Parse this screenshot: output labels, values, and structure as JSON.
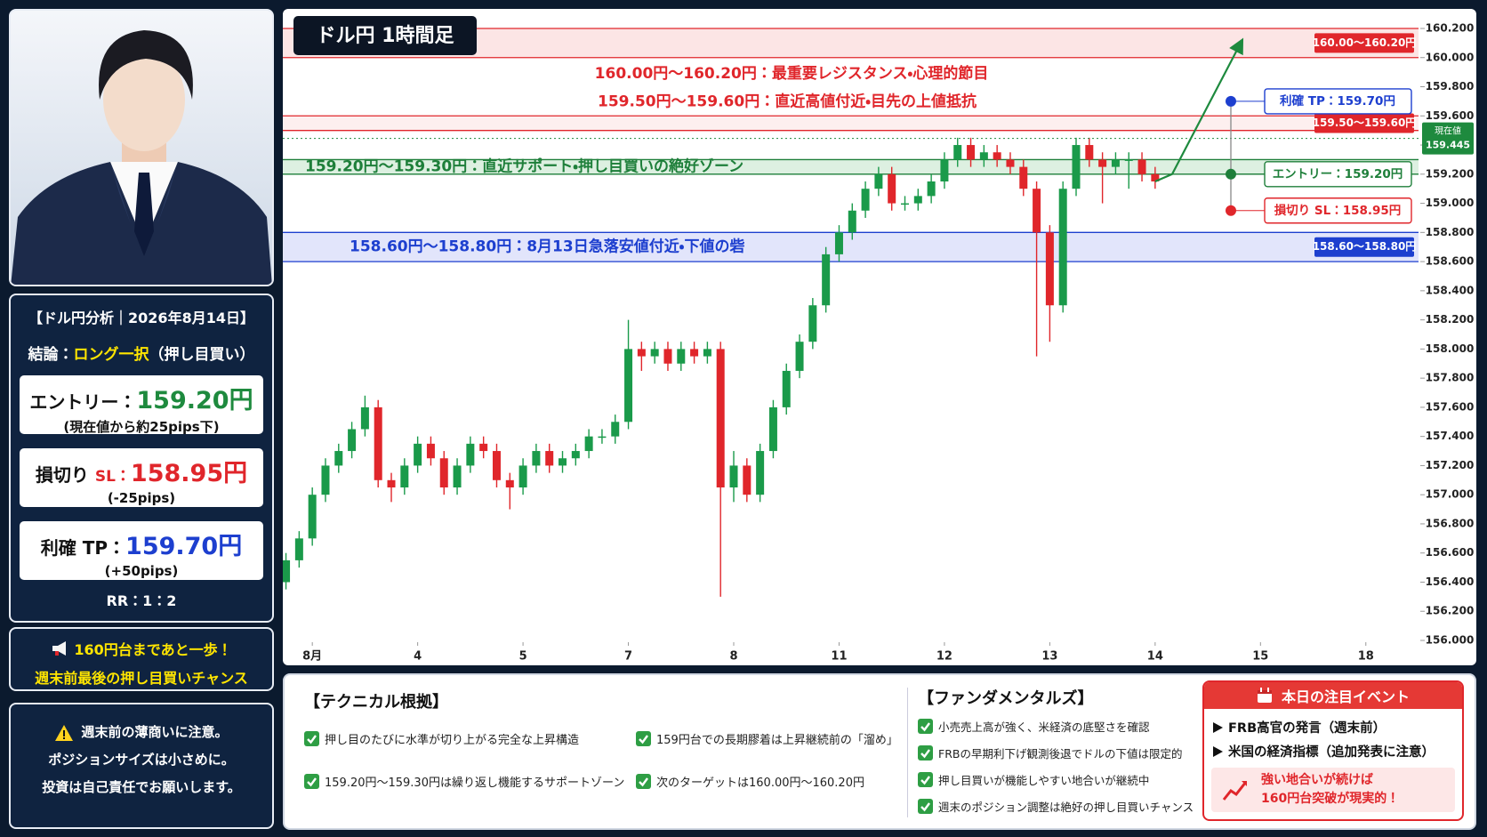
{
  "sidebar": {
    "title": "【ドル円分析｜2026年8月14日】",
    "conclusion": {
      "label": "結論：",
      "value": "ロング一択",
      "note": "（押し目買い）"
    },
    "entry": {
      "label": "エントリー：",
      "price": "159.20円",
      "note": "(現在値から約25pips下)"
    },
    "stop_loss": {
      "label": "損切り",
      "tag": "SL：",
      "price": "158.95円",
      "note": "(-25pips)"
    },
    "take_profit": {
      "label": "利確 TP：",
      "price": "159.70円",
      "note": "(+50pips)"
    },
    "rr": "RR：1：2",
    "banner": [
      "160円台まであと一歩！",
      "週末前最後の押し目買いチャンス"
    ],
    "notice": [
      "週末前の薄商いに注意。",
      "ポジションサイズは小さめに。",
      "投資は自己責任でお願いします。"
    ]
  },
  "chart_data": {
    "type": "candlestick",
    "title": "ドル円 1時間足",
    "up_color": "#1a9a4a",
    "down_color": "#e0262b",
    "x": [
      -0.25,
      -0.125,
      0,
      0.125,
      0.25,
      0.375,
      0.5,
      0.625,
      0.75,
      0.875,
      1,
      1.125,
      1.25,
      1.375,
      1.5,
      1.625,
      1.75,
      1.875,
      2,
      2.125,
      2.25,
      2.375,
      2.5,
      2.625,
      2.75,
      2.875,
      3,
      3.125,
      3.25,
      3.375,
      3.5,
      3.625,
      3.75,
      3.875,
      4,
      4.125,
      4.25,
      4.375,
      4.5,
      4.625,
      4.75,
      4.875,
      5,
      5.125,
      5.25,
      5.375,
      5.5,
      5.625,
      5.75,
      5.875,
      6,
      6.125,
      6.25,
      6.375,
      6.5,
      6.625,
      6.75,
      6.875,
      7,
      7.125,
      7.25,
      7.375,
      7.5,
      7.625,
      7.75,
      7.875,
      8
    ],
    "open": [
      156.4,
      156.55,
      156.7,
      157.0,
      157.2,
      157.3,
      157.45,
      157.6,
      157.1,
      157.05,
      157.2,
      157.35,
      157.25,
      157.05,
      157.2,
      157.35,
      157.3,
      157.1,
      157.05,
      157.2,
      157.3,
      157.2,
      157.25,
      157.3,
      157.4,
      157.4,
      157.5,
      158.0,
      157.95,
      158.0,
      157.9,
      158.0,
      157.95,
      158.0,
      157.05,
      157.2,
      157.0,
      157.3,
      157.6,
      157.85,
      158.05,
      158.3,
      158.65,
      158.8,
      158.95,
      159.1,
      159.2,
      159.0,
      159.0,
      159.05,
      159.15,
      159.3,
      159.4,
      159.3,
      159.35,
      159.3,
      159.25,
      159.1,
      158.8,
      158.3,
      159.1,
      159.4,
      159.3,
      159.25,
      159.3,
      159.3,
      159.2
    ],
    "high": [
      156.6,
      156.75,
      157.05,
      157.25,
      157.35,
      157.5,
      157.68,
      157.65,
      157.15,
      157.25,
      157.4,
      157.4,
      157.3,
      157.25,
      157.4,
      157.4,
      157.35,
      157.15,
      157.25,
      157.35,
      157.35,
      157.3,
      157.35,
      157.45,
      157.45,
      157.55,
      158.2,
      158.05,
      158.05,
      158.05,
      158.05,
      158.05,
      158.05,
      158.05,
      157.3,
      157.25,
      157.35,
      157.65,
      157.9,
      158.1,
      158.35,
      158.7,
      158.85,
      159.0,
      159.15,
      159.25,
      159.25,
      159.05,
      159.1,
      159.2,
      159.35,
      159.45,
      159.45,
      159.4,
      159.4,
      159.35,
      159.3,
      159.15,
      158.85,
      159.15,
      159.45,
      159.45,
      159.35,
      159.35,
      159.35,
      159.35,
      159.25
    ],
    "low": [
      156.35,
      156.5,
      156.65,
      156.95,
      157.15,
      157.25,
      157.4,
      157.05,
      156.95,
      157.0,
      157.15,
      157.2,
      157.0,
      157.0,
      157.15,
      157.25,
      157.05,
      156.9,
      157.0,
      157.15,
      157.15,
      157.15,
      157.2,
      157.25,
      157.35,
      157.35,
      157.45,
      157.85,
      157.9,
      157.85,
      157.85,
      157.9,
      157.9,
      156.3,
      156.95,
      156.95,
      156.95,
      157.25,
      157.55,
      157.8,
      158.0,
      158.25,
      158.6,
      158.75,
      158.9,
      159.05,
      158.95,
      158.95,
      158.95,
      159.0,
      159.1,
      159.25,
      159.25,
      159.25,
      159.25,
      159.2,
      159.05,
      157.95,
      158.05,
      158.25,
      159.05,
      159.25,
      159.0,
      159.2,
      159.1,
      159.15,
      159.1
    ],
    "close": [
      156.55,
      156.7,
      157.0,
      157.2,
      157.3,
      157.45,
      157.6,
      157.1,
      157.05,
      157.2,
      157.35,
      157.25,
      157.05,
      157.2,
      157.35,
      157.3,
      157.1,
      157.05,
      157.2,
      157.3,
      157.2,
      157.25,
      157.3,
      157.4,
      157.4,
      157.5,
      158.0,
      157.95,
      158.0,
      157.9,
      158.0,
      157.95,
      158.0,
      157.05,
      157.2,
      157.0,
      157.3,
      157.6,
      157.85,
      158.05,
      158.3,
      158.65,
      158.8,
      158.95,
      159.1,
      159.2,
      159.0,
      159.0,
      159.05,
      159.15,
      159.3,
      159.4,
      159.3,
      159.35,
      159.3,
      159.25,
      159.1,
      158.8,
      158.3,
      159.1,
      159.4,
      159.3,
      159.25,
      159.3,
      159.3,
      159.2,
      159.15
    ],
    "xlim": [
      -0.28,
      10.5
    ],
    "xticks": [
      {
        "value": 0,
        "label": "8月"
      },
      {
        "value": 1,
        "label": "4"
      },
      {
        "value": 2,
        "label": "5"
      },
      {
        "value": 3,
        "label": "7"
      },
      {
        "value": 4,
        "label": "8"
      },
      {
        "value": 5,
        "label": "11"
      },
      {
        "value": 6,
        "label": "12"
      },
      {
        "value": 7,
        "label": "13"
      },
      {
        "value": 8,
        "label": "14"
      },
      {
        "value": 9,
        "label": "15"
      },
      {
        "value": 10,
        "label": "18"
      }
    ],
    "ylim": [
      156.0,
      160.2
    ],
    "yticks": [
      {
        "value": 156.0,
        "label": "156.000"
      },
      {
        "value": 156.2,
        "label": "156.200"
      },
      {
        "value": 156.4,
        "label": "156.400"
      },
      {
        "value": 156.6,
        "label": "156.600"
      },
      {
        "value": 156.8,
        "label": "156.800"
      },
      {
        "value": 157.0,
        "label": "157.000"
      },
      {
        "value": 157.2,
        "label": "157.200"
      },
      {
        "value": 157.4,
        "label": "157.400"
      },
      {
        "value": 157.6,
        "label": "157.600"
      },
      {
        "value": 157.8,
        "label": "157.800"
      },
      {
        "value": 158.0,
        "label": "158.000"
      },
      {
        "value": 158.2,
        "label": "158.200"
      },
      {
        "value": 158.4,
        "label": "158.400"
      },
      {
        "value": 158.6,
        "label": "158.600"
      },
      {
        "value": 158.8,
        "label": "158.800"
      },
      {
        "value": 159.0,
        "label": "159.000"
      },
      {
        "value": 159.2,
        "label": "159.200"
      },
      {
        "value": 159.4,
        "label": "159.400"
      },
      {
        "value": 159.6,
        "label": "159.600"
      },
      {
        "value": 159.8,
        "label": "159.800"
      },
      {
        "value": 160.0,
        "label": "160.000"
      },
      {
        "value": 160.2,
        "label": "160.200"
      }
    ],
    "zones": [
      {
        "low": 160.0,
        "high": 160.2,
        "label": "160.00円〜160.20円：最重要レジスタンス・心理的節目",
        "tag": "160.00〜160.20円",
        "color": "#e0262b",
        "fill": "rgba(229,57,53,0.13)"
      },
      {
        "low": 159.5,
        "high": 159.6,
        "label": "159.50円〜159.60円：直近高値付近・目先の上値抵抗",
        "tag": "159.50〜159.60円",
        "color": "#e0262b",
        "fill": "rgba(229,57,53,0.08)"
      },
      {
        "low": 159.2,
        "high": 159.3,
        "label": "159.20円〜159.30円：直近サポート・押し目買いの絶好ゾーン",
        "color": "#1e7f3a",
        "fill": "rgba(46,160,67,0.16)"
      },
      {
        "low": 158.6,
        "high": 158.8,
        "label": "158.60円〜158.80円：8月13日急落安値付近・下値の砦",
        "tag": "158.60〜158.80円",
        "color": "#1d3fcf",
        "fill": "rgba(63,81,231,0.15)"
      }
    ],
    "current_price": {
      "label": "現在値",
      "value": 159.445,
      "color": "#1e8a3e"
    },
    "markers": [
      {
        "label": "利確 TP：159.70円",
        "value": 159.7,
        "color": "#1d3fcf"
      },
      {
        "label": "エントリー：159.20円",
        "value": 159.2,
        "color": "#1e7f3a"
      },
      {
        "label": "損切り SL：158.95円",
        "value": 158.95,
        "color": "#e0262b"
      }
    ]
  },
  "technical": {
    "title": "【テクニカル根拠】",
    "items": [
      "押し目のたびに水準が切り上がる完全な上昇構造",
      "159円台での長期膠着は上昇継続前の「溜め」",
      "159.20円〜159.30円は繰り返し機能するサポートゾーン",
      "次のターゲットは160.00円〜160.20円"
    ]
  },
  "fundamentals": {
    "title": "【ファンダメンタルズ】",
    "items": [
      "小売売上高が強く、米経済の底堅さを確認",
      "FRBの早期利下げ観測後退でドルの下値は限定的",
      "押し目買いが機能しやすい地合いが継続中",
      "週末のポジション調整は絶好の押し目買いチャンス"
    ]
  },
  "events": {
    "title": "本日の注目イベント",
    "items": [
      "FRB高官の発言（週末前）",
      "米国の経済指標（追加発表に注意）"
    ],
    "note": [
      "強い地合いが続けば",
      "160円台突破が現実的！"
    ]
  }
}
